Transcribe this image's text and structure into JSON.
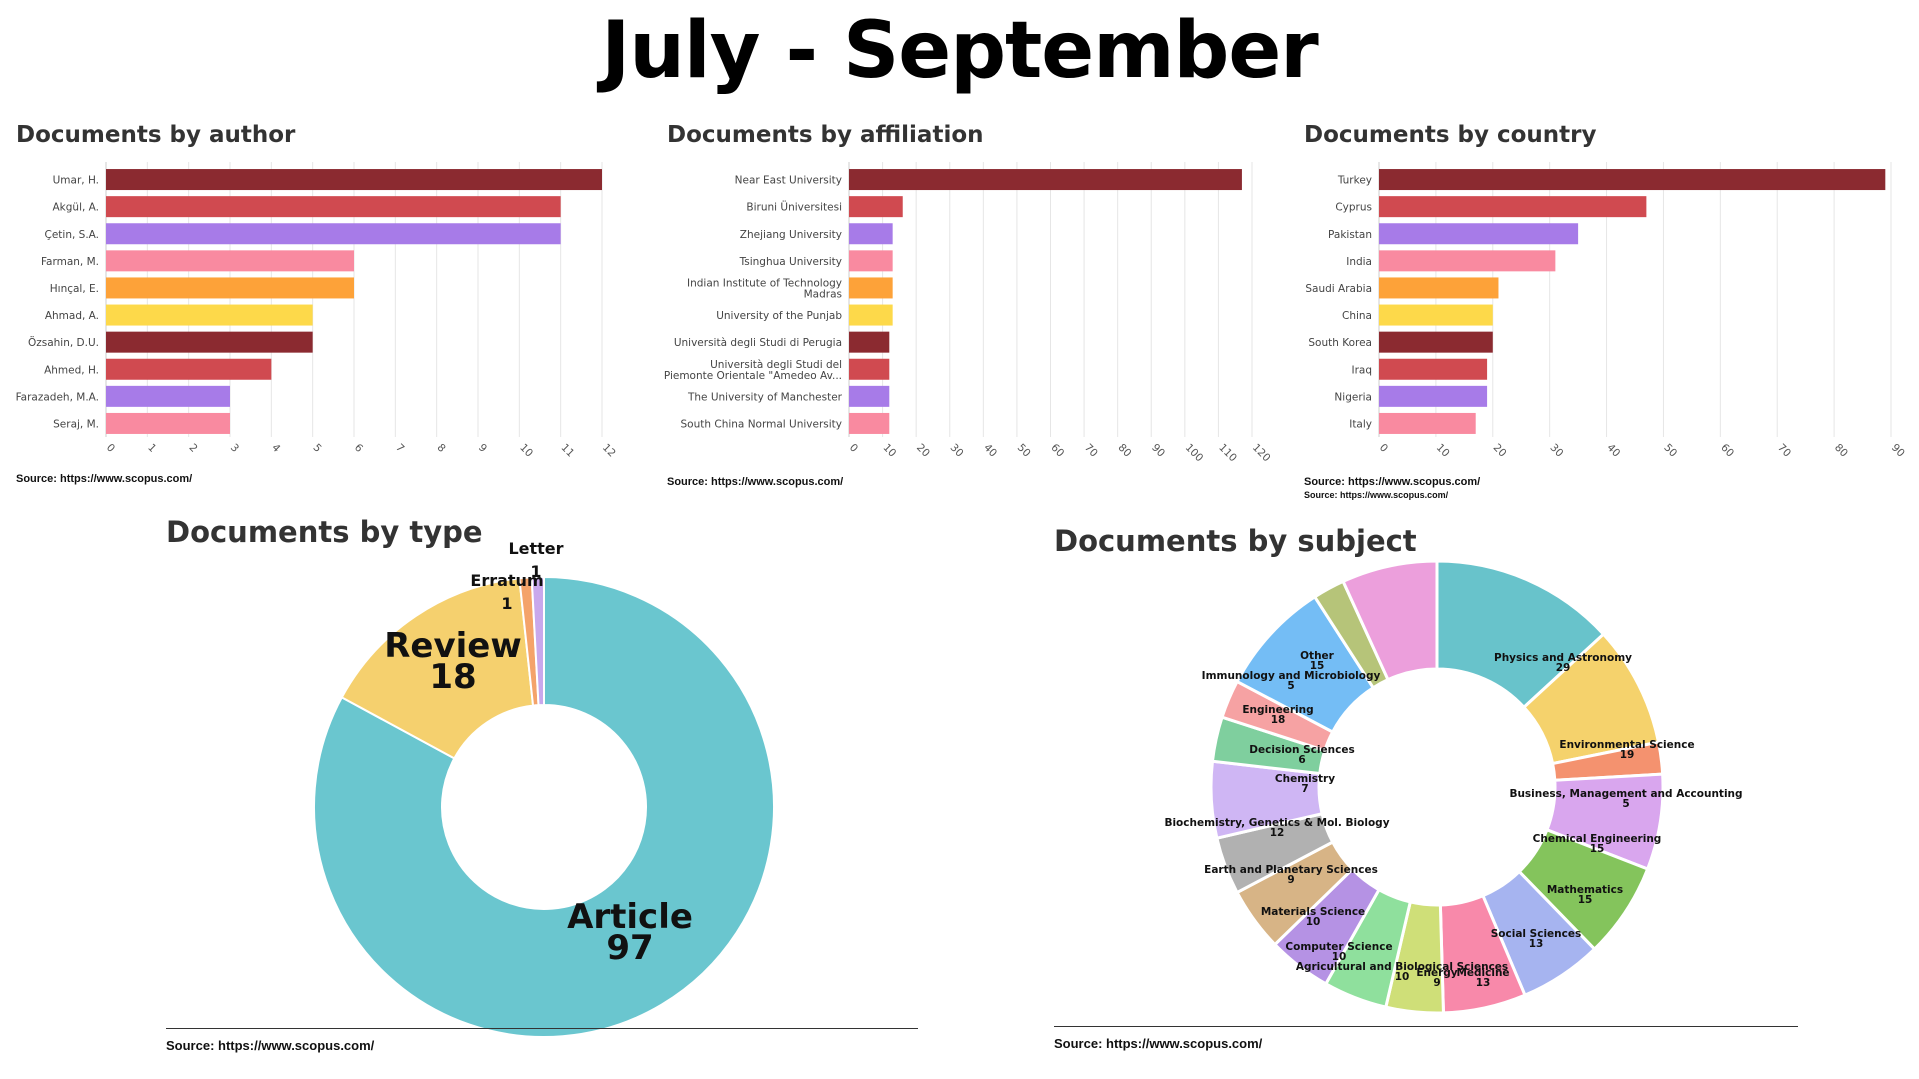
{
  "page": {
    "title": "July - September"
  },
  "colors": {
    "palette": [
      "#8b2a30",
      "#d04a50",
      "#a77be8",
      "#f98aa0",
      "#fda239",
      "#fdd94a"
    ],
    "type": [
      "#6ac6cf",
      "#f5d06e",
      "#f4a36a",
      "#c9a8ec"
    ]
  },
  "chart_data": [
    {
      "type": "bar",
      "orientation": "horizontal",
      "title": "Documents by author",
      "categories": [
        "Umar, H.",
        "Akgül, A.",
        "Çetin, S.A.",
        "Farman, M.",
        "Hınçal, E.",
        "Ahmad, A.",
        "Özsahin, D.U.",
        "Ahmed, H.",
        "Farazadeh, M.A.",
        "Seraj, M."
      ],
      "values": [
        12,
        11,
        11,
        6,
        6,
        5,
        5,
        4,
        3,
        3
      ],
      "xlim": [
        0,
        12
      ],
      "ticks": [
        "0",
        "1",
        "2",
        "3",
        "4",
        "5",
        "6",
        "7",
        "8",
        "9",
        "10",
        "11",
        "12"
      ],
      "grid": true,
      "source": "Source: https://www.scopus.com/"
    },
    {
      "type": "bar",
      "orientation": "horizontal",
      "title": "Documents by affiliation",
      "categories": [
        "Near East University",
        "Biruni Üniversitesi",
        "Zhejiang University",
        "Tsinghua University",
        "Indian Institute of Technology Madras",
        "University of the Punjab",
        "Università degli Studi di Perugia",
        "Università degli Studi del Piemonte Orientale \"Amedeo Av...",
        "The University of Manchester",
        "South China Normal University"
      ],
      "labels": [
        [
          "Near East University"
        ],
        [
          "Biruni Üniversitesi"
        ],
        [
          "Zhejiang University"
        ],
        [
          "Tsinghua University"
        ],
        [
          "Indian Institute of Technology",
          "Madras"
        ],
        [
          "University of the Punjab"
        ],
        [
          "Università degli Studi di Perugia"
        ],
        [
          "Università degli Studi del",
          "Piemonte Orientale \"Amedeo Av..."
        ],
        [
          "The University of Manchester"
        ],
        [
          "South China Normal University"
        ]
      ],
      "values": [
        117,
        16,
        13,
        13,
        13,
        13,
        12,
        12,
        12,
        12
      ],
      "xlim": [
        0,
        120
      ],
      "ticks": [
        "0",
        "10",
        "20",
        "30",
        "40",
        "50",
        "60",
        "70",
        "80",
        "90",
        "100",
        "110",
        "120"
      ],
      "grid": true,
      "source": "Source: https://www.scopus.com/"
    },
    {
      "type": "bar",
      "orientation": "horizontal",
      "title": "Documents by country",
      "categories": [
        "Turkey",
        "Cyprus",
        "Pakistan",
        "India",
        "Saudi Arabia",
        "China",
        "South Korea",
        "Iraq",
        "Nigeria",
        "Italy"
      ],
      "values": [
        89,
        47,
        35,
        31,
        21,
        20,
        20,
        19,
        19,
        17
      ],
      "xlim": [
        0,
        90
      ],
      "ticks": [
        "0",
        "10",
        "20",
        "30",
        "40",
        "50",
        "60",
        "70",
        "80",
        "90"
      ],
      "grid": true,
      "source": "Source: https://www.scopus.com/",
      "source_repeat": "Source: https://www.scopus.com/"
    },
    {
      "type": "pie",
      "donut": true,
      "title": "Documents by type",
      "slices": [
        {
          "label": "Article",
          "value": 97
        },
        {
          "label": "Review",
          "value": 18
        },
        {
          "label": "Erratum",
          "value": 1
        },
        {
          "label": "Letter",
          "value": 1
        }
      ],
      "source": "Source: https://www.scopus.com/"
    },
    {
      "type": "pie",
      "donut": true,
      "title": "Documents by subject",
      "slices": [
        {
          "label": "Physics and Astronomy",
          "value": 29,
          "color": "#68c3cb"
        },
        {
          "label": "Environmental Science",
          "value": 19,
          "color": "#f5d26c"
        },
        {
          "label": "Business, Management and Accounting",
          "value": 5,
          "color": "#f4926f"
        },
        {
          "label": "Chemical Engineering",
          "value": 15,
          "color": "#d9a6ee"
        },
        {
          "label": "Mathematics",
          "value": 15,
          "color": "#84c45c"
        },
        {
          "label": "Social Sciences",
          "value": 13,
          "color": "#a6b4f0"
        },
        {
          "label": "Medicine",
          "value": 13,
          "color": "#f889aa"
        },
        {
          "label": "Energy",
          "value": 9,
          "color": "#cfdf78"
        },
        {
          "label": "Agricultural and Biological Sciences",
          "value": 10,
          "color": "#8fe09d"
        },
        {
          "label": "Computer Science",
          "value": 10,
          "color": "#b592e4"
        },
        {
          "label": "Materials Science",
          "value": 10,
          "color": "#d7b486"
        },
        {
          "label": "Earth and Planetary Sciences",
          "value": 9,
          "color": "#b1b1b1"
        },
        {
          "label": "Biochemistry, Genetics & Mol. Biology",
          "value": 12,
          "color": "#cfb6f4"
        },
        {
          "label": "Chemistry",
          "value": 7,
          "color": "#7fcf9e"
        },
        {
          "label": "Decision Sciences",
          "value": 6,
          "color": "#f6a2a3"
        },
        {
          "label": "Engineering",
          "value": 18,
          "color": "#74bdf5"
        },
        {
          "label": "Immunology and Microbiology",
          "value": 5,
          "color": "#b6c479"
        },
        {
          "label": "Other",
          "value": 15,
          "color": "#ec9fdc"
        }
      ],
      "source": "Source: https://www.scopus.com/"
    }
  ]
}
